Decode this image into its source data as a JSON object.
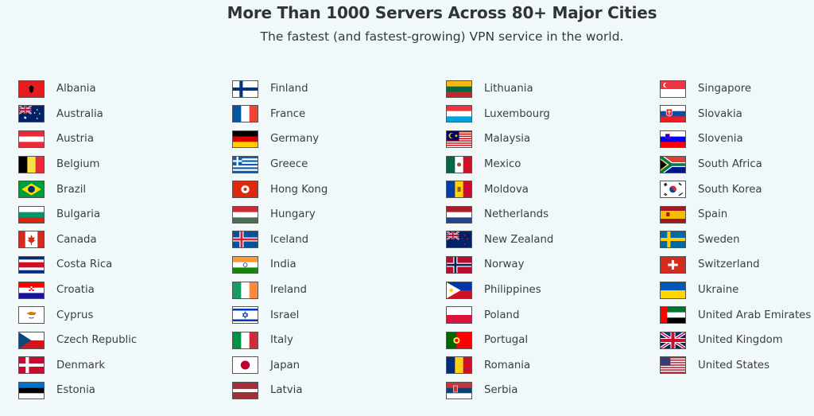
{
  "header": {
    "title": "More Than 1000 Servers Across 80+ Major Cities",
    "subtitle": "The fastest (and fastest-growing) VPN service in the world."
  },
  "columns": [
    [
      {
        "name": "Albania",
        "flag": "albania-flag-icon"
      },
      {
        "name": "Australia",
        "flag": "australia-flag-icon"
      },
      {
        "name": "Austria",
        "flag": "austria-flag-icon"
      },
      {
        "name": "Belgium",
        "flag": "belgium-flag-icon"
      },
      {
        "name": "Brazil",
        "flag": "brazil-flag-icon"
      },
      {
        "name": "Bulgaria",
        "flag": "bulgaria-flag-icon"
      },
      {
        "name": "Canada",
        "flag": "canada-flag-icon"
      },
      {
        "name": "Costa Rica",
        "flag": "costa-rica-flag-icon"
      },
      {
        "name": "Croatia",
        "flag": "croatia-flag-icon"
      },
      {
        "name": "Cyprus",
        "flag": "cyprus-flag-icon"
      },
      {
        "name": "Czech Republic",
        "flag": "czech-republic-flag-icon"
      },
      {
        "name": "Denmark",
        "flag": "denmark-flag-icon"
      },
      {
        "name": "Estonia",
        "flag": "estonia-flag-icon"
      }
    ],
    [
      {
        "name": "Finland",
        "flag": "finland-flag-icon"
      },
      {
        "name": "France",
        "flag": "france-flag-icon"
      },
      {
        "name": "Germany",
        "flag": "germany-flag-icon"
      },
      {
        "name": "Greece",
        "flag": "greece-flag-icon"
      },
      {
        "name": "Hong Kong",
        "flag": "hong-kong-flag-icon"
      },
      {
        "name": "Hungary",
        "flag": "hungary-flag-icon"
      },
      {
        "name": "Iceland",
        "flag": "iceland-flag-icon"
      },
      {
        "name": "India",
        "flag": "india-flag-icon"
      },
      {
        "name": "Ireland",
        "flag": "ireland-flag-icon"
      },
      {
        "name": "Israel",
        "flag": "israel-flag-icon"
      },
      {
        "name": "Italy",
        "flag": "italy-flag-icon"
      },
      {
        "name": "Japan",
        "flag": "japan-flag-icon"
      },
      {
        "name": "Latvia",
        "flag": "latvia-flag-icon"
      }
    ],
    [
      {
        "name": "Lithuania",
        "flag": "lithuania-flag-icon"
      },
      {
        "name": "Luxembourg",
        "flag": "luxembourg-flag-icon"
      },
      {
        "name": "Malaysia",
        "flag": "malaysia-flag-icon"
      },
      {
        "name": "Mexico",
        "flag": "mexico-flag-icon"
      },
      {
        "name": "Moldova",
        "flag": "moldova-flag-icon"
      },
      {
        "name": "Netherlands",
        "flag": "netherlands-flag-icon"
      },
      {
        "name": "New Zealand",
        "flag": "new-zealand-flag-icon"
      },
      {
        "name": "Norway",
        "flag": "norway-flag-icon"
      },
      {
        "name": "Philippines",
        "flag": "philippines-flag-icon"
      },
      {
        "name": "Poland",
        "flag": "poland-flag-icon"
      },
      {
        "name": "Portugal",
        "flag": "portugal-flag-icon"
      },
      {
        "name": "Romania",
        "flag": "romania-flag-icon"
      },
      {
        "name": "Serbia",
        "flag": "serbia-flag-icon"
      }
    ],
    [
      {
        "name": "Singapore",
        "flag": "singapore-flag-icon"
      },
      {
        "name": "Slovakia",
        "flag": "slovakia-flag-icon"
      },
      {
        "name": "Slovenia",
        "flag": "slovenia-flag-icon"
      },
      {
        "name": "South Africa",
        "flag": "south-africa-flag-icon"
      },
      {
        "name": "South Korea",
        "flag": "south-korea-flag-icon"
      },
      {
        "name": "Spain",
        "flag": "spain-flag-icon"
      },
      {
        "name": "Sweden",
        "flag": "sweden-flag-icon"
      },
      {
        "name": "Switzerland",
        "flag": "switzerland-flag-icon"
      },
      {
        "name": "Ukraine",
        "flag": "ukraine-flag-icon"
      },
      {
        "name": "United Arab Emirates",
        "flag": "united-arab-emirates-flag-icon"
      },
      {
        "name": "United Kingdom",
        "flag": "united-kingdom-flag-icon"
      },
      {
        "name": "United States",
        "flag": "united-states-flag-icon"
      }
    ]
  ],
  "colors": {
    "background": "#f1f8fa",
    "title": "#30343a",
    "text": "#3a3e44"
  }
}
